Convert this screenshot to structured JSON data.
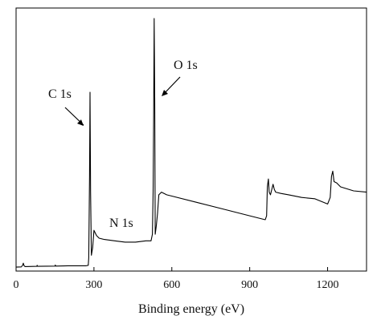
{
  "chart_data": {
    "type": "line",
    "title": "",
    "xlabel": "Binding energy (eV)",
    "ylabel": "",
    "xlim": [
      0,
      1350
    ],
    "ylim": [
      0,
      100
    ],
    "x_ticks": [
      0,
      300,
      600,
      900,
      1200
    ],
    "x_tick_labels": [
      "0",
      "300",
      "600",
      "900",
      "1200"
    ],
    "grid": false,
    "legend": "none",
    "line_color": "#000000",
    "annotations": [
      {
        "text": "C 1s",
        "x": 285
      },
      {
        "text": "N 1s",
        "x": 400
      },
      {
        "text": "O 1s",
        "x": 532
      }
    ],
    "series": [
      {
        "x": [
          0,
          20,
          25,
          28,
          31,
          35,
          80,
          81,
          83,
          150,
          151,
          153,
          200,
          250,
          270,
          278,
          280,
          283,
          285,
          287,
          290,
          295,
          300,
          310,
          320,
          340,
          380,
          420,
          460,
          500,
          520,
          525,
          528,
          530,
          532,
          534,
          536,
          540,
          545,
          550,
          560,
          580,
          600,
          700,
          800,
          900,
          960,
          965,
          968,
          972,
          975,
          980,
          990,
          995,
          1000,
          1020,
          1050,
          1100,
          1150,
          1200,
          1210,
          1215,
          1220,
          1225,
          1235,
          1250,
          1300,
          1350
        ],
        "y": [
          1.5,
          1.6,
          2.2,
          3.0,
          2.0,
          1.7,
          1.8,
          2.2,
          1.8,
          1.9,
          2.3,
          1.9,
          2.0,
          2.0,
          2.0,
          2.2,
          5.0,
          36.0,
          68.0,
          30.0,
          6.0,
          9.0,
          15.5,
          13.5,
          12.5,
          12.0,
          11.5,
          11.0,
          11.0,
          11.5,
          11.5,
          14.0,
          30.0,
          60.0,
          96.0,
          65.0,
          14.0,
          17.0,
          22.0,
          29.0,
          30.0,
          29.0,
          28.5,
          26.0,
          23.5,
          21.0,
          19.5,
          21.0,
          32.0,
          35.0,
          30.0,
          29.0,
          33.0,
          31.0,
          30.0,
          29.5,
          29.0,
          28.0,
          27.5,
          25.5,
          28.0,
          36.0,
          38.0,
          34.0,
          33.5,
          32.0,
          30.5,
          30.0
        ]
      }
    ]
  }
}
